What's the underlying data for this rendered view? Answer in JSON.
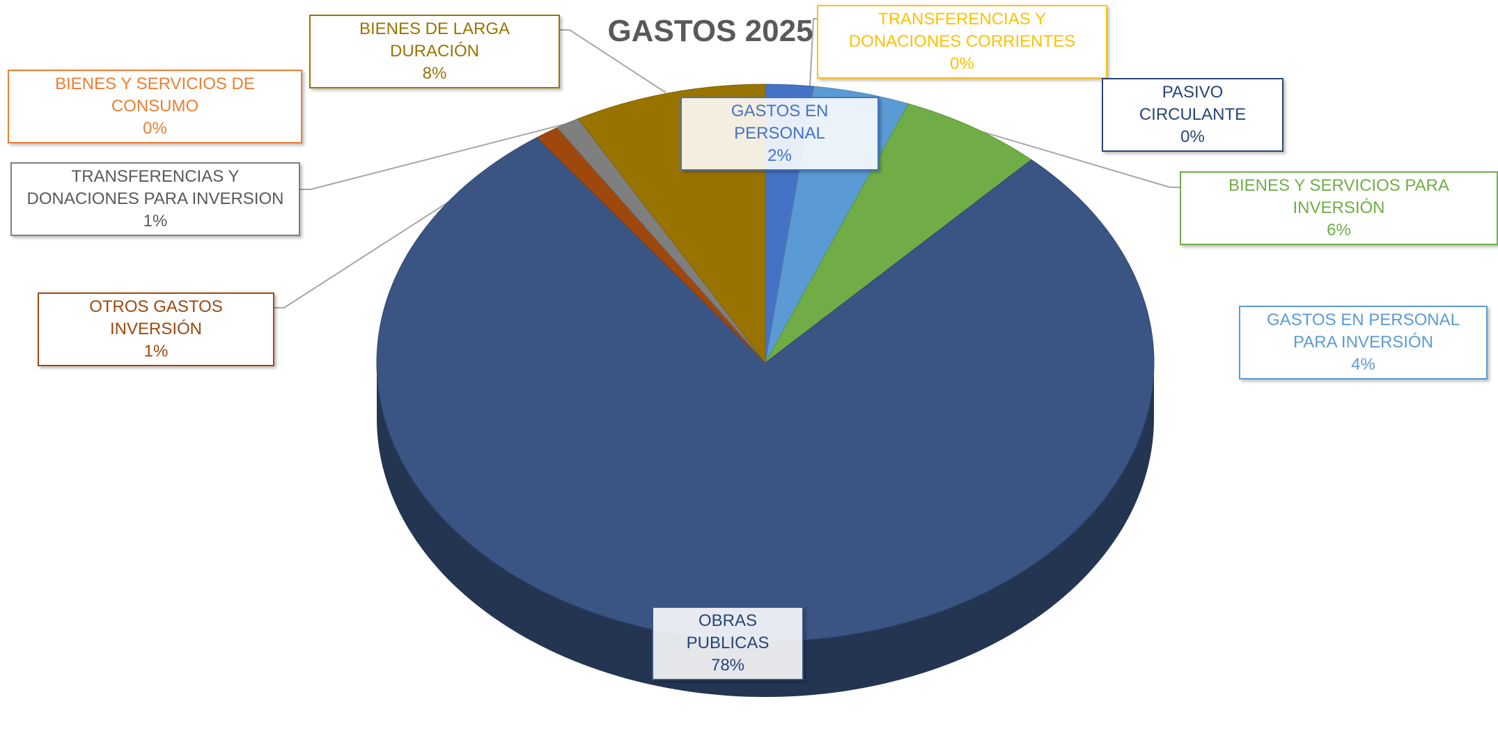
{
  "chart_data": {
    "type": "pie",
    "title": "GASTOS 2025",
    "categories": [
      "GASTOS EN PERSONAL",
      "BIENES Y SERVICIOS DE CONSUMO",
      "TRANSFERENCIAS Y DONACIONES CORRIENTES",
      "PASIVO CIRCULANTE",
      "GASTOS EN PERSONAL PARA INVERSIÓN",
      "BIENES Y SERVICIOS PARA INVERSIÓN",
      "OBRAS PUBLICAS",
      "OTROS GASTOS INVERSIÓN",
      "TRANSFERENCIAS Y DONACIONES PARA INVERSION",
      "BIENES DE LARGA DURACIÓN"
    ],
    "values": [
      2,
      0,
      0,
      0,
      4,
      6,
      78,
      1,
      1,
      8
    ],
    "value_labels": [
      "2%",
      "0%",
      "0%",
      "0%",
      "4%",
      "6%",
      "78%",
      "1%",
      "1%",
      "8%"
    ],
    "colors": [
      "#4472c4",
      "#ed7d31",
      "#ffc000",
      "#264478",
      "#5b9bd5",
      "#70ad47",
      "#3a5584",
      "#9e480e",
      "#7f7f7f",
      "#997300"
    ]
  }
}
